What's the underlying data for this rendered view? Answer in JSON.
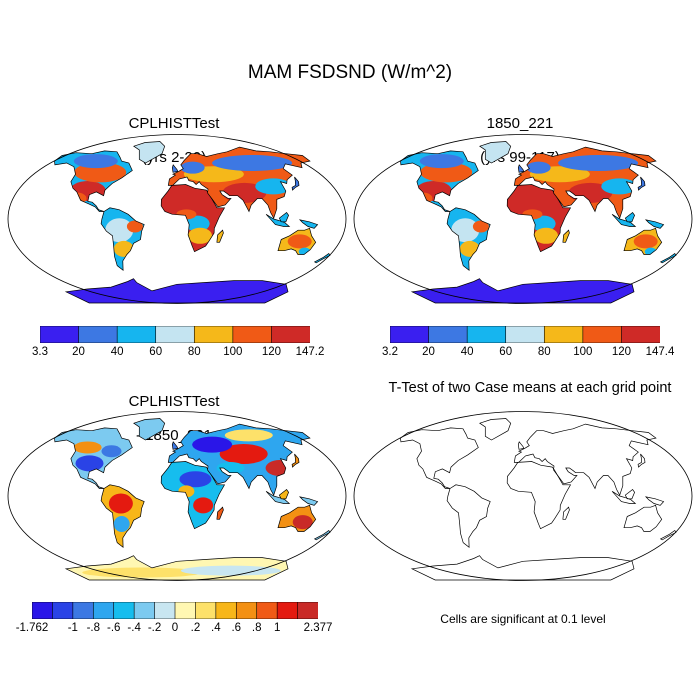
{
  "figure": {
    "title": "MAM FSDSND (W/m^2)"
  },
  "panels": [
    {
      "id": "case",
      "title_line1": "CPLHISTTest",
      "title_line2": "(yrs 2-20)"
    },
    {
      "id": "control",
      "title_line1": "1850_221",
      "title_line2": "(yrs 99-117)"
    },
    {
      "id": "diff",
      "title_line1": "CPLHISTTest",
      "title_line2": "- 1850_221"
    },
    {
      "id": "ttest",
      "title_line1": "T-Test of two Case means at each grid point",
      "title_line2": ""
    }
  ],
  "colorbars": {
    "case": {
      "colors": [
        "#3a1ff0",
        "#3d78e3",
        "#16b5ef",
        "#c4e4f1",
        "#f5b81a",
        "#f05a16",
        "#cf2a27"
      ],
      "labels": [
        "3.3",
        "20",
        "40",
        "60",
        "80",
        "100",
        "120",
        "147.2"
      ]
    },
    "control": {
      "colors": [
        "#3a1ff0",
        "#3d78e3",
        "#16b5ef",
        "#c4e4f1",
        "#f5b81a",
        "#f05a16",
        "#cf2a27"
      ],
      "labels": [
        "3.2",
        "20",
        "40",
        "60",
        "80",
        "100",
        "120",
        "147.4"
      ]
    },
    "diff": {
      "colors": [
        "#2a16e8",
        "#2a43e6",
        "#3c78e3",
        "#2ea6ef",
        "#16bdee",
        "#7ccaf0",
        "#c8e6f1",
        "#fff7b2",
        "#fde16a",
        "#f7b619",
        "#f39013",
        "#f05a16",
        "#e41a10",
        "#c92a27"
      ],
      "labels": [
        "-1.762",
        "",
        "-1",
        "-.8",
        "-.6",
        "-.4",
        "-.2",
        "0",
        ".2",
        ".4",
        ".6",
        ".8",
        "1",
        "",
        "2.377"
      ]
    }
  },
  "note": "Cells are significant at 0.1 level"
}
